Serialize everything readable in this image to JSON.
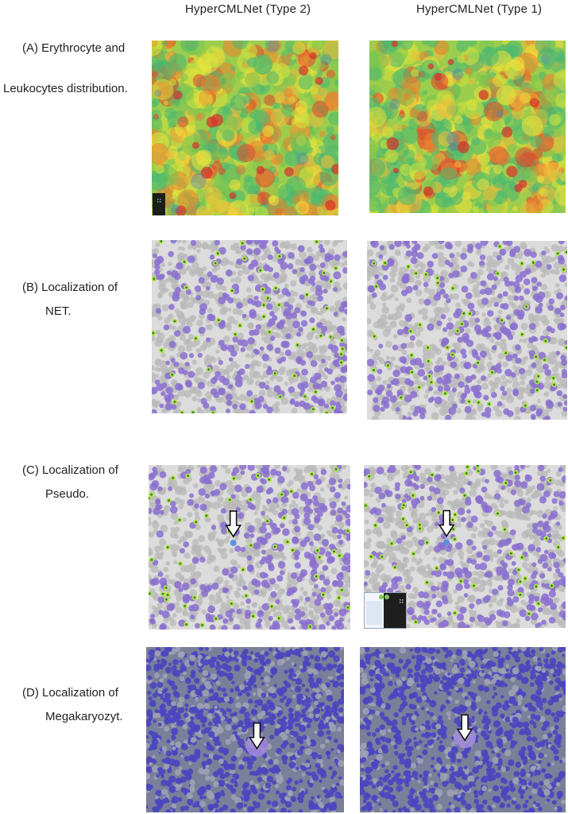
{
  "columns": [
    {
      "label": "HyperCMLNet (Type 2)"
    },
    {
      "label": "HyperCMLNet (Type 1)"
    }
  ],
  "rows": [
    {
      "line1": "(A) Erythrocyte and",
      "line2": "Leukocytes distribution.",
      "kind": "heatmap"
    },
    {
      "line1": "(B) Localization of",
      "line2": "NET.",
      "kind": "smear"
    },
    {
      "line1": "(C) Localization of",
      "line2": "Pseudo.",
      "kind": "smear-arrow"
    },
    {
      "line1": "(D) Localization of",
      "line2": "Megakaryozyt.",
      "kind": "dense-arrow"
    }
  ],
  "colors": {
    "heat_high": "#e8452a",
    "heat_mid": "#f2e23a",
    "heat_low": "#3fb36f",
    "cell_purple": "#8a6fd0",
    "rbc_gray": "#b8b8b8",
    "dense_blue": "#4a45c0"
  }
}
